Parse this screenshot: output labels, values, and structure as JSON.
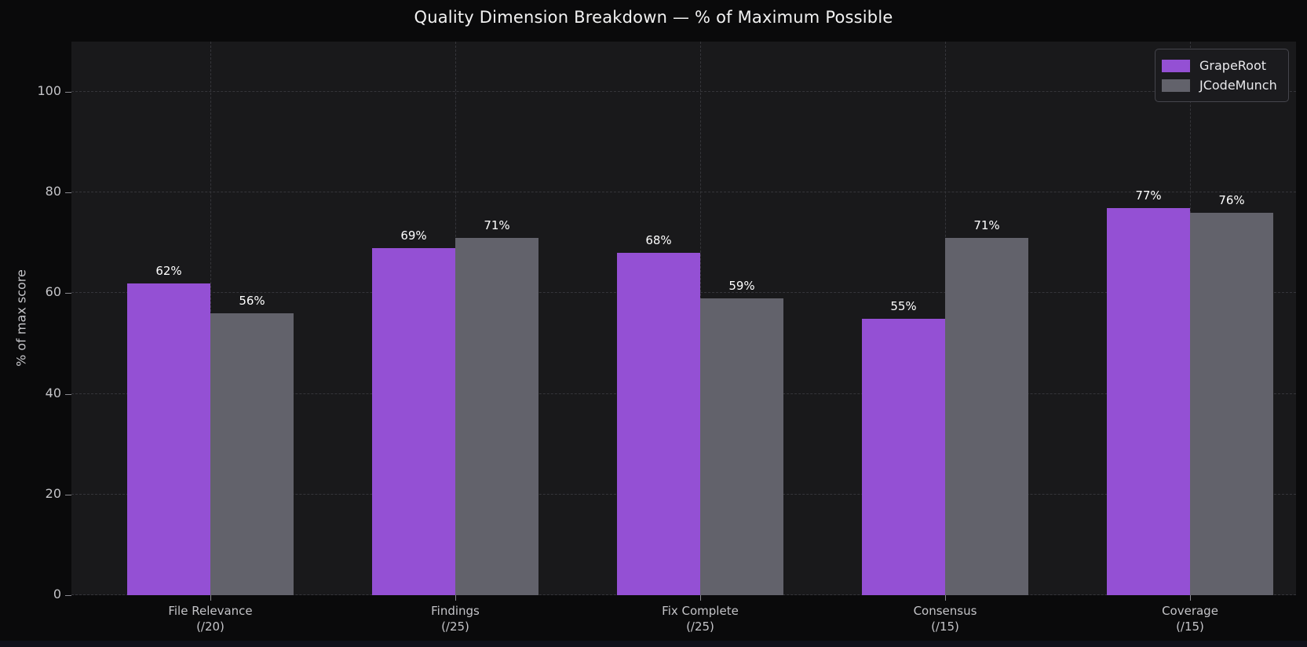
{
  "chart_data": {
    "type": "bar",
    "title": "Quality Dimension Breakdown — % of Maximum Possible",
    "xlabel": "",
    "ylabel": "% of max score",
    "ylim": [
      0,
      110
    ],
    "yticks": [
      0,
      20,
      40,
      60,
      80,
      100
    ],
    "grid": {
      "style": "dashed",
      "axes": "both"
    },
    "legend": {
      "position": "upper-right"
    },
    "categories": [
      {
        "label": "File Relevance",
        "max_label": "(/20)"
      },
      {
        "label": "Findings",
        "max_label": "(/25)"
      },
      {
        "label": "Fix Complete",
        "max_label": "(/25)"
      },
      {
        "label": "Consensus",
        "max_label": "(/15)"
      },
      {
        "label": "Coverage",
        "max_label": "(/15)"
      }
    ],
    "series": [
      {
        "name": "GrapeRoot",
        "color": "#9450d4",
        "values": [
          62,
          69,
          68,
          55,
          77
        ]
      },
      {
        "name": "JCodeMunch",
        "color": "#62626b",
        "values": [
          56,
          71,
          59,
          71,
          76
        ]
      }
    ],
    "value_label_suffix": "%"
  },
  "theme": {
    "figure_bg": "#0a0a0b",
    "plot_bg": "#19191b",
    "grid_color": "#35353a",
    "tick_text_color": "#c4c4c8",
    "title_color": "#f2f2f2",
    "value_label_color": "#ffffff",
    "legend_bg": "#1b1b1e",
    "legend_border": "#45454c"
  }
}
